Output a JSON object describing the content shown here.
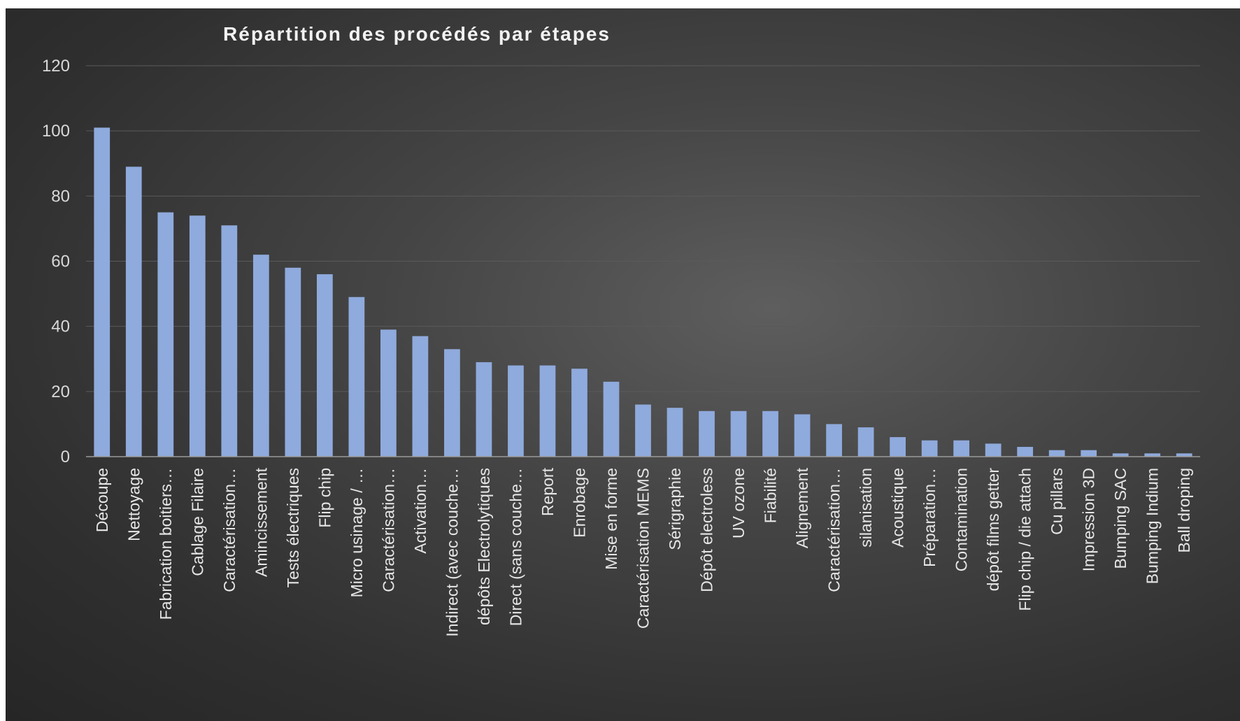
{
  "chart_data": {
    "type": "bar",
    "title": "Répartition des procédés par étapes",
    "xlabel": "",
    "ylabel": "",
    "ylim": [
      0,
      120
    ],
    "yticks": [
      0,
      20,
      40,
      60,
      80,
      100,
      120
    ],
    "grid": true,
    "legend": "none",
    "bar_color": "#8faadc",
    "background_color": "#3c3c3c",
    "categories": [
      "Découpe",
      "Nettoyage",
      "Fabrication boitiers…",
      "Cablage Filaire",
      "Caractérisation…",
      "Amincissement",
      "Tests électriques",
      "Flip chip",
      "Micro usinage / …",
      "Caractérisation…",
      "Activation…",
      "Indirect (avec couche…",
      "dépôts Electrolytiques",
      "Direct (sans couche…",
      "Report",
      "Enrobage",
      "Mise en forme",
      "Caractérisation MEMS",
      "Sérigraphie",
      "Dépôt electroless",
      "UV ozone",
      "Fiabilité",
      "Alignement",
      "Caractérisation…",
      "silanisation",
      "Acoustique",
      "Préparation…",
      "Contamination",
      "dépôt films getter",
      "Flip chip / die attach",
      "Cu pillars",
      "Impression 3D",
      "Bumping SAC",
      "Bumping Indium",
      "Ball droping"
    ],
    "values": [
      101,
      89,
      75,
      74,
      71,
      62,
      58,
      56,
      49,
      39,
      37,
      33,
      29,
      28,
      28,
      27,
      23,
      16,
      15,
      14,
      14,
      14,
      13,
      10,
      9,
      6,
      5,
      5,
      4,
      3,
      2,
      2,
      1,
      1,
      1
    ]
  }
}
